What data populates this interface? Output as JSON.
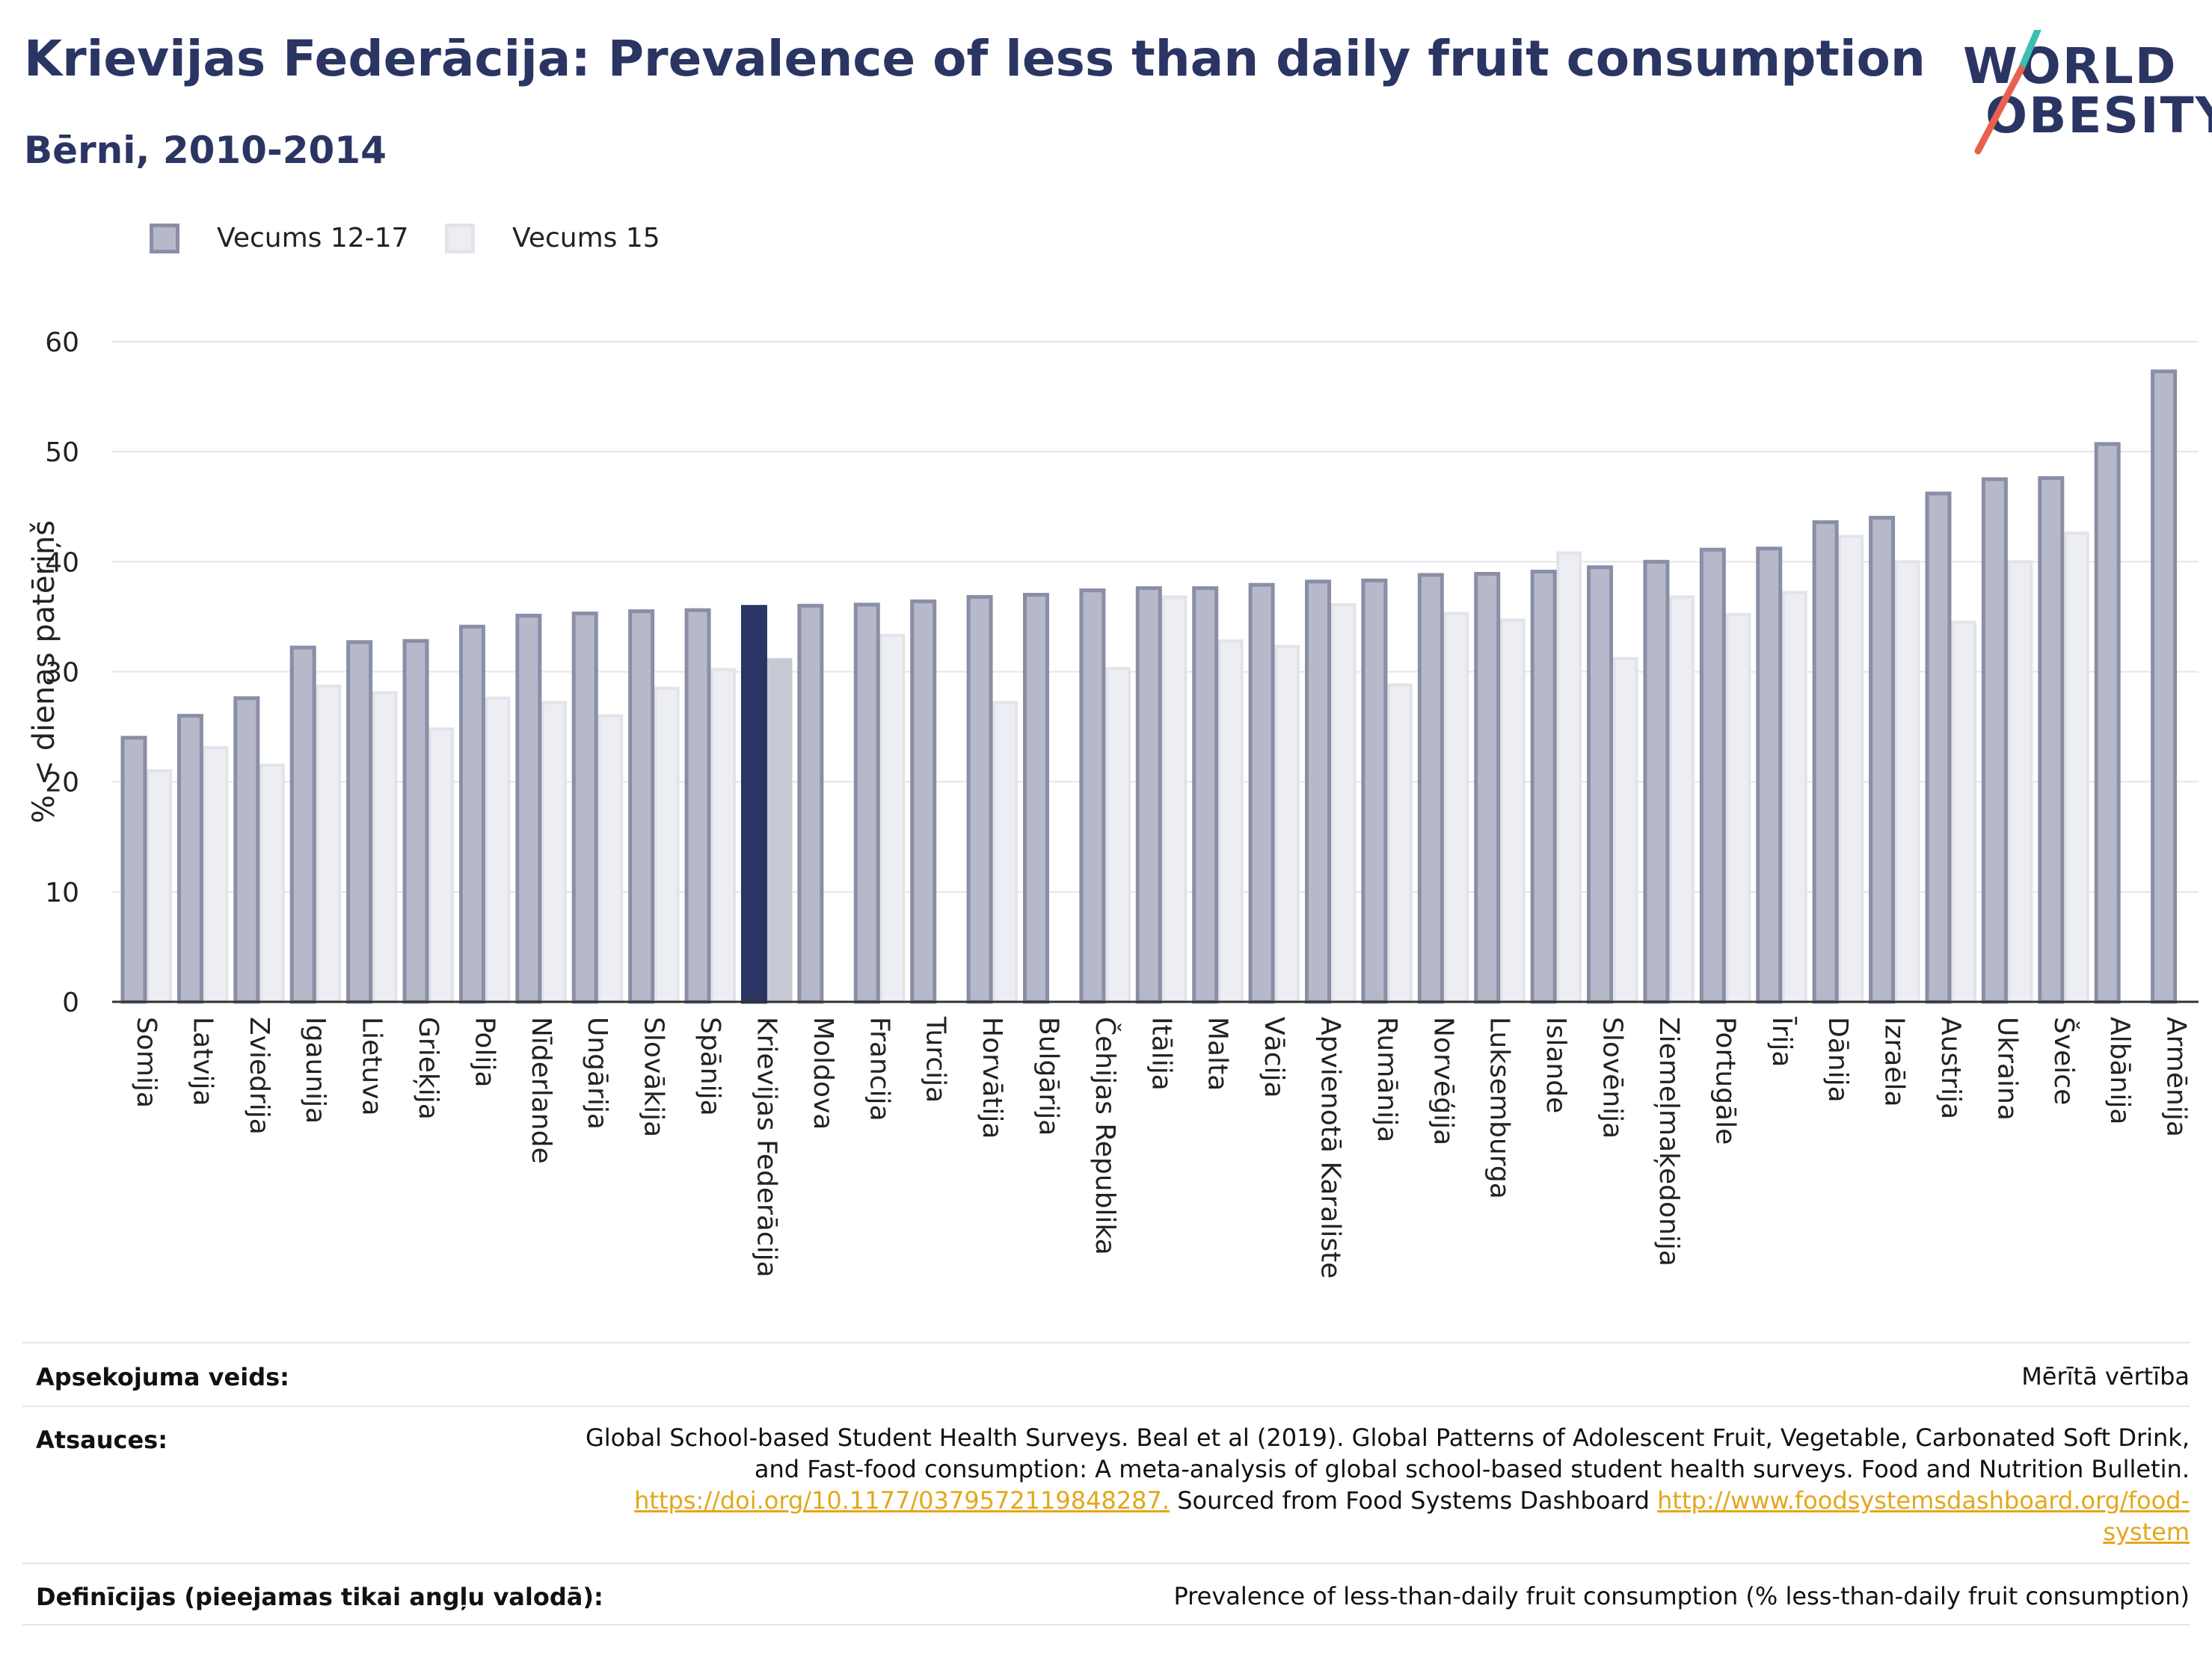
{
  "header": {
    "title": "Krievijas Federācija: Prevalence of less than daily fruit consumption",
    "subtitle": "Bērni, 2010-2014"
  },
  "logo": {
    "line1": "WORLD",
    "line2": "OBESITY"
  },
  "colors": {
    "title": "#2b3563",
    "series1_fill": "#b6b9c9",
    "series1_stroke": "#8a8ea6",
    "series2_fill": "#eceef3",
    "series2_stroke": "#e2e4ea",
    "highlight1": "#2b3563",
    "highlight2": "#c7c9d4",
    "link": "#e3a71a",
    "logo_slash_teal": "#3bbfb3",
    "logo_slash_red": "#e8614f"
  },
  "chart_data": {
    "type": "bar",
    "ylabel": "% < dienas patēriņš",
    "ylim": [
      0,
      60
    ],
    "yticks": [
      0,
      10,
      20,
      30,
      40,
      50,
      60
    ],
    "grid": true,
    "legend_position": "top-left",
    "highlight_category": "Krievijas Federācija",
    "categories": [
      "Somija",
      "Latvija",
      "Zviedrija",
      "Igaunija",
      "Lietuva",
      "Grieķija",
      "Polija",
      "Nīderlande",
      "Ungārija",
      "Slovākija",
      "Spānija",
      "Krievijas Federācija",
      "Moldova",
      "Francija",
      "Turcija",
      "Horvātija",
      "Bulgārija",
      "Čehijas Republika",
      "Itālija",
      "Malta",
      "Vācija",
      "Apvienotā Karaliste",
      "Rumānija",
      "Norvēģija",
      "Luksemburga",
      "Islande",
      "Slovēnija",
      "Ziemeļmaķedonija",
      "Portugāle",
      "Īrija",
      "Dānija",
      "Izraēla",
      "Austrija",
      "Ukraina",
      "Šveice",
      "Albānija",
      "Armēnija"
    ],
    "series": [
      {
        "name": "Vecums 12-17",
        "values": [
          24.0,
          26.0,
          27.6,
          32.2,
          32.7,
          32.8,
          34.1,
          35.1,
          35.3,
          35.5,
          35.6,
          35.9,
          36.0,
          36.1,
          36.4,
          36.8,
          37.0,
          37.4,
          37.6,
          37.6,
          37.9,
          38.2,
          38.3,
          38.8,
          38.9,
          39.1,
          39.5,
          40.0,
          41.1,
          41.2,
          43.6,
          44.0,
          46.2,
          47.5,
          47.6,
          50.7,
          57.3
        ]
      },
      {
        "name": "Vecums 15",
        "values": [
          21.0,
          23.1,
          21.5,
          28.7,
          28.1,
          24.8,
          27.6,
          27.2,
          26.0,
          28.5,
          30.2,
          31.1,
          null,
          33.3,
          null,
          27.2,
          null,
          30.3,
          36.8,
          32.8,
          32.3,
          36.1,
          28.8,
          35.3,
          34.7,
          40.8,
          31.2,
          36.8,
          35.2,
          37.2,
          42.3,
          40.0,
          34.5,
          40.0,
          42.6,
          null,
          null
        ]
      }
    ]
  },
  "meta": {
    "survey_type_label": "Apsekojuma veids:",
    "survey_type_value": "Mērītā vērtība",
    "references_label": "Atsauces:",
    "references_line1": "Global School-based Student Health Surveys. Beal et al (2019). Global Patterns of Adolescent Fruit, Vegetable, Carbonated Soft Drink,",
    "references_line2": "and Fast-food consumption: A meta-analysis of global school-based student health surveys. Food and Nutrition Bulletin.",
    "references_link1": "https://doi.org/10.1177/0379572119848287.",
    "references_middle": " Sourced from Food Systems Dashboard ",
    "references_link2a": "http://www.foodsystemsdashboard.org/food-",
    "references_link2b": "system",
    "definitions_label": "Definīcijas (pieejamas tikai angļu valodā):",
    "definitions_value": "Prevalence of less-than-daily fruit consumption (% less-than-daily fruit consumption)"
  }
}
